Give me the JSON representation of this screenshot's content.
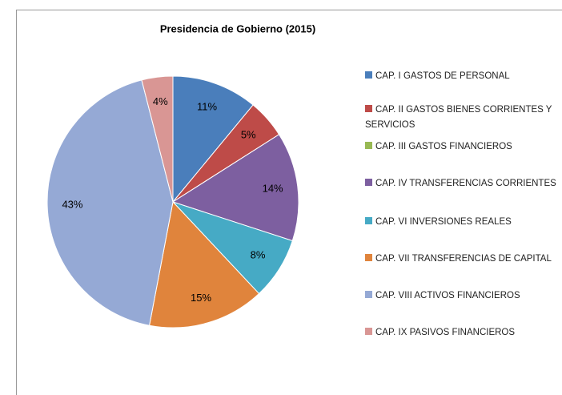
{
  "chart_data": {
    "type": "pie",
    "title": "Presidencia de Gobierno (2015)",
    "categories": [
      "CAP. I GASTOS DE PERSONAL",
      "CAP. II GASTOS BIENES CORRIENTES Y SERVICIOS",
      "CAP. III GASTOS FINANCIEROS",
      "CAP. IV TRANSFERENCIAS CORRIENTES",
      "CAP. VI INVERSIONES REALES",
      "CAP. VII TRANSFERENCIAS DE CAPITAL",
      "CAP. VIII ACTIVOS FINANCIEROS",
      "CAP. IX PASIVOS FINANCIEROS"
    ],
    "values": [
      11,
      5,
      0,
      14,
      8,
      15,
      43,
      4
    ],
    "value_labels": [
      "11%",
      "5%",
      null,
      "14%",
      "8%",
      "15%",
      "43%",
      "4%"
    ],
    "colors": [
      "#4a7ebb",
      "#be4b48",
      "#98b954",
      "#7d5fa0",
      "#46aac5",
      "#e0843c",
      "#95a9d5",
      "#d99694"
    ],
    "legend": "right"
  }
}
